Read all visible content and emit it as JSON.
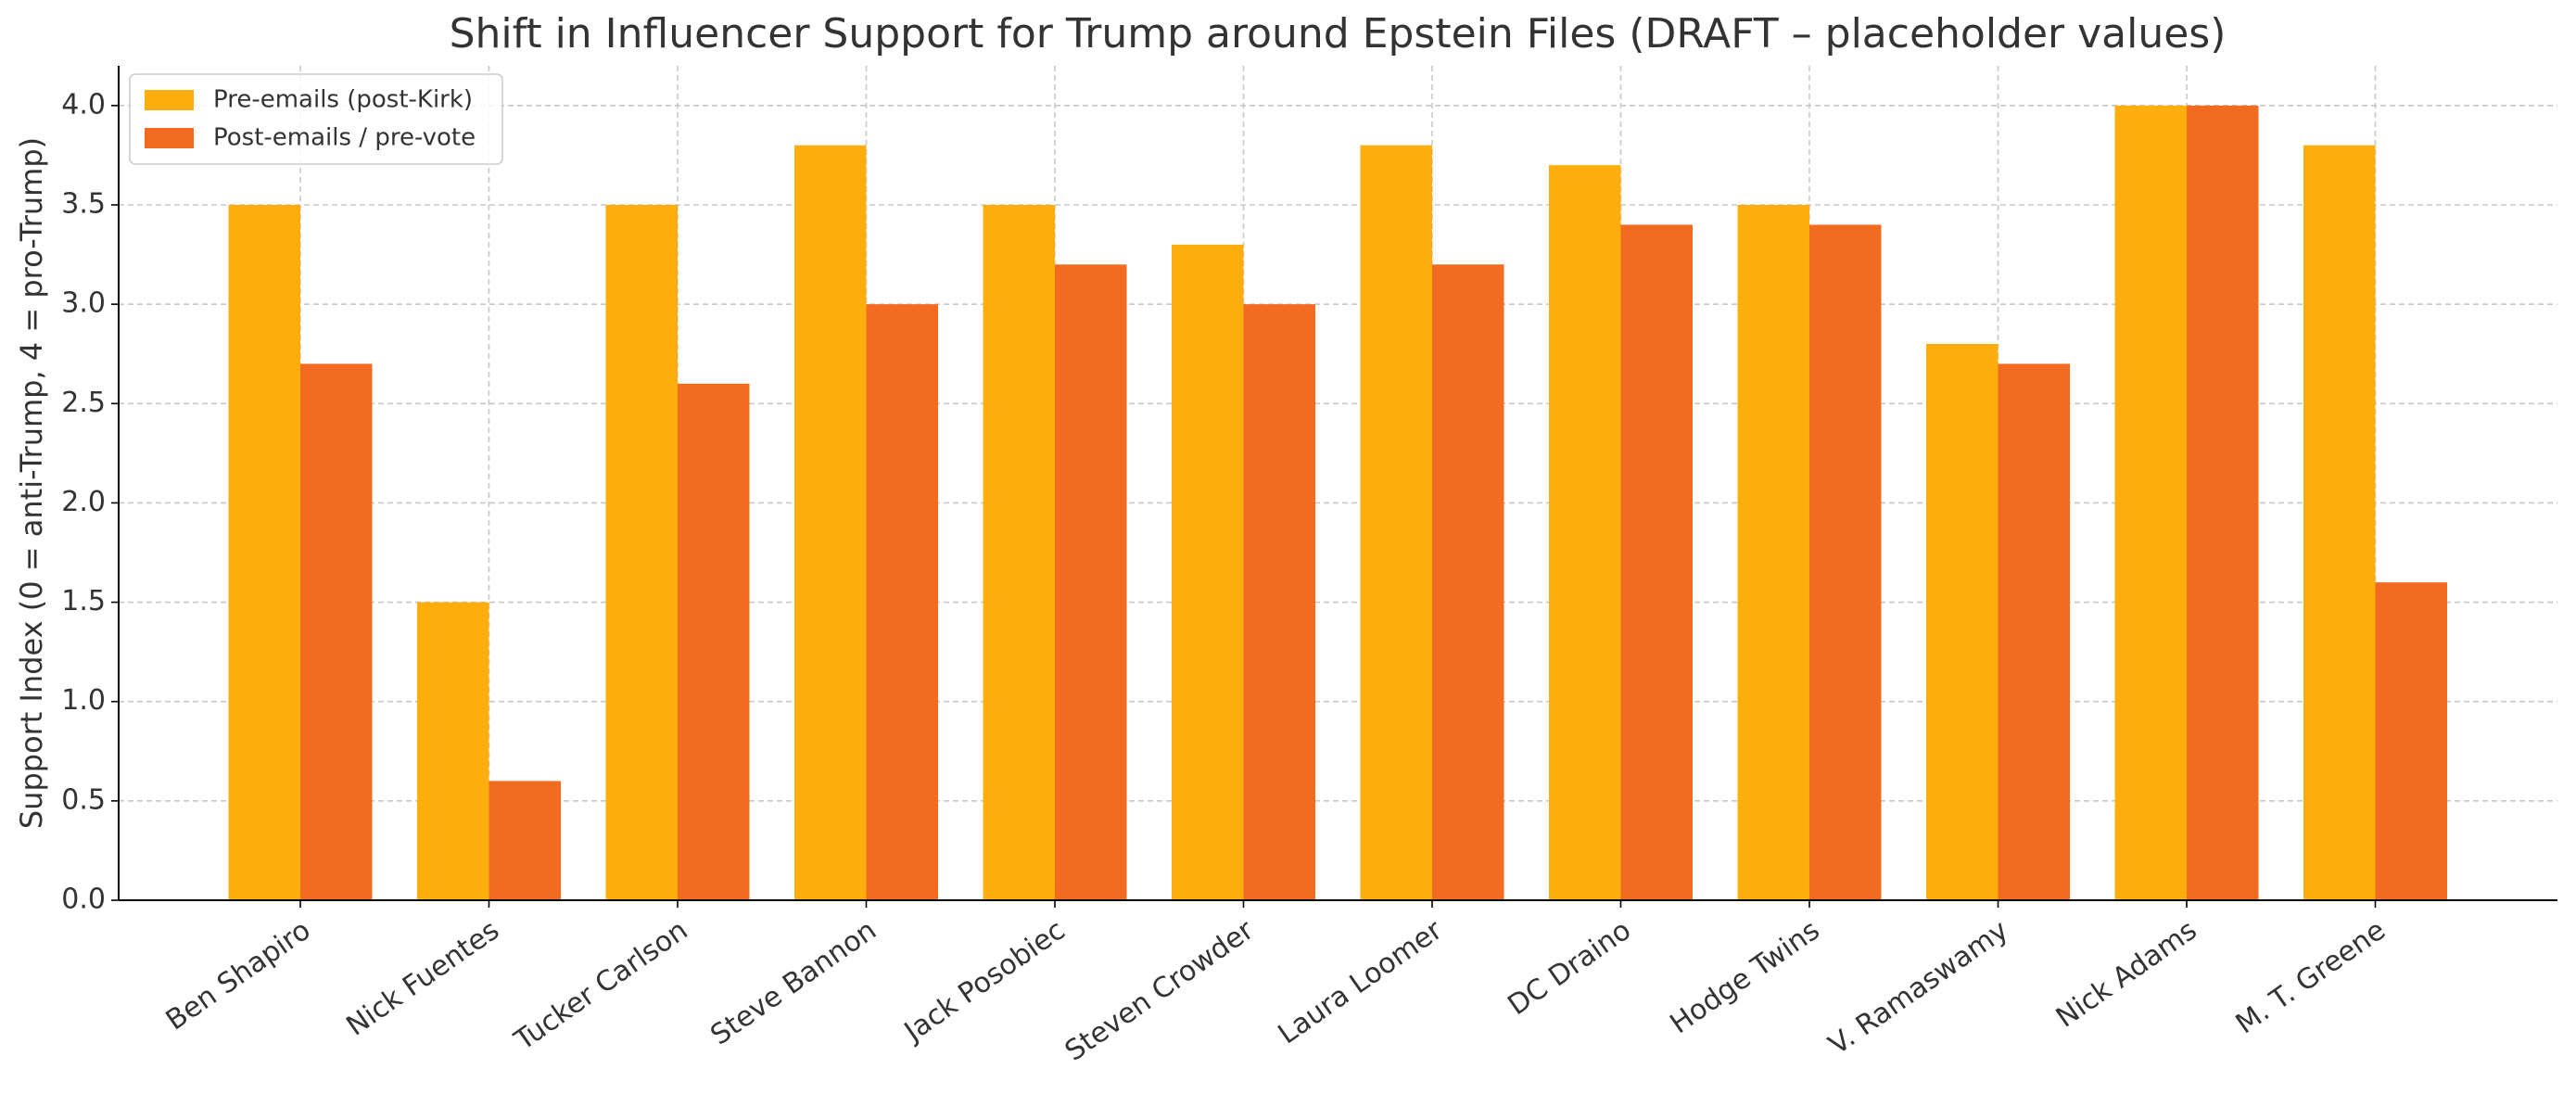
{
  "chart_data": {
    "type": "bar",
    "title": "Shift in Influencer Support for Trump around Epstein Files (DRAFT – placeholder values)",
    "y_label": "Support Index (0 = anti-Trump, 4 = pro-Trump)",
    "categories": [
      "Ben Shapiro",
      "Nick Fuentes",
      "Tucker Carlson",
      "Steve Bannon",
      "Jack Posobiec",
      "Steven Crowder",
      "Laura Loomer",
      "DC Draino",
      "Hodge Twins",
      "V. Ramaswamy",
      "Nick Adams",
      "M. T. Greene"
    ],
    "series": [
      {
        "name": "Pre-emails (post-Kirk)",
        "color": "#fdae0d",
        "values": [
          3.5,
          1.5,
          3.5,
          3.8,
          3.5,
          3.3,
          3.8,
          3.7,
          3.5,
          2.8,
          4.0,
          3.8
        ]
      },
      {
        "name": "Post-emails / pre-vote",
        "color": "#f26b21",
        "values": [
          2.7,
          0.6,
          2.6,
          3.0,
          3.2,
          3.0,
          3.2,
          3.4,
          3.4,
          2.7,
          4.0,
          1.6
        ]
      }
    ],
    "ylim": [
      0,
      4.2
    ],
    "yticks": [
      {
        "value": 0,
        "label": "0.0"
      },
      0.5,
      {
        "value": 1,
        "label": "1.0"
      },
      1.5,
      {
        "value": 2,
        "label": "2.0"
      },
      2.5,
      {
        "value": 3,
        "label": "3.0"
      },
      3.5,
      {
        "value": 4,
        "label": "4.0"
      }
    ],
    "grid": true,
    "legend": "upper left"
  }
}
